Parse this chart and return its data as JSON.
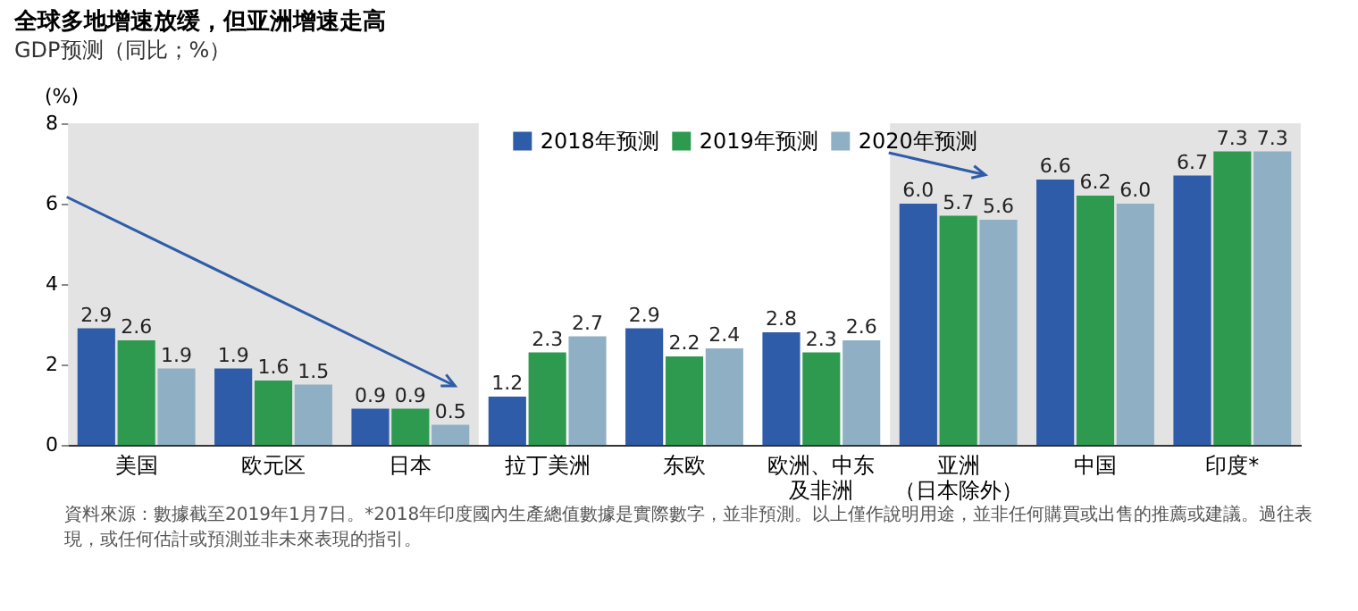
{
  "chart_data": {
    "type": "bar",
    "title": "全球多地增速放缓，但亚洲增速走高",
    "subtitle": "GDP预测（同比；%）",
    "ylabel": "(%)",
    "categories": [
      "美国",
      "欧元区",
      "日本",
      "拉丁美洲",
      "东欧",
      "欧洲、中东及非洲",
      "亚洲（日本除外）",
      "中国",
      "印度*"
    ],
    "series": [
      {
        "name": "2018年预测",
        "color": "#2e5ca8",
        "values": [
          2.9,
          1.9,
          0.9,
          1.2,
          2.9,
          2.8,
          6,
          6.6,
          6.7
        ],
        "value_labels": [
          "2.9",
          "1.9",
          "0.9",
          "1.2",
          "2.9",
          "2.8",
          "6.0",
          "6.6",
          "6.7"
        ]
      },
      {
        "name": "2019年预测",
        "color": "#2e9a50",
        "values": [
          2.6,
          1.6,
          0.9,
          2.3,
          2.2,
          2.3,
          5.7,
          6.2,
          7.3
        ],
        "value_labels": [
          "2.6",
          "1.6",
          "0.9",
          "2.3",
          "2.2",
          "2.3",
          "5.7",
          "6.2",
          "7.3"
        ]
      },
      {
        "name": "2020年预测",
        "color": "#8fb0c4",
        "values": [
          1.9,
          1.5,
          0.5,
          2.7,
          2.4,
          2.6,
          5.6,
          6,
          7.3
        ],
        "value_labels": [
          "1.9",
          "1.5",
          "0.5",
          "2.7",
          "2.4",
          "2.6",
          "5.6",
          "6.0",
          "7.3"
        ]
      }
    ],
    "ylim": [
      0,
      8
    ],
    "yticks": [
      0,
      2,
      4,
      6,
      8
    ],
    "grid": false,
    "legend": "top",
    "bands": [
      {
        "axis": "x",
        "from": "美国",
        "to": "日本",
        "color": "#e3e3e3"
      },
      {
        "axis": "x",
        "from": "亚洲（日本除外）",
        "to": "印度*",
        "color": "#e3e3e3"
      }
    ],
    "annotations": [
      "資料來源：數據截至2019年1月7日。*2018年印度國內生產總值數據是實際數字，並非預測。以上僅作說明用途，並非任何購買或出售的推薦或建議。過往表現，或任何估計或預測並非未來表現的指引。"
    ]
  }
}
